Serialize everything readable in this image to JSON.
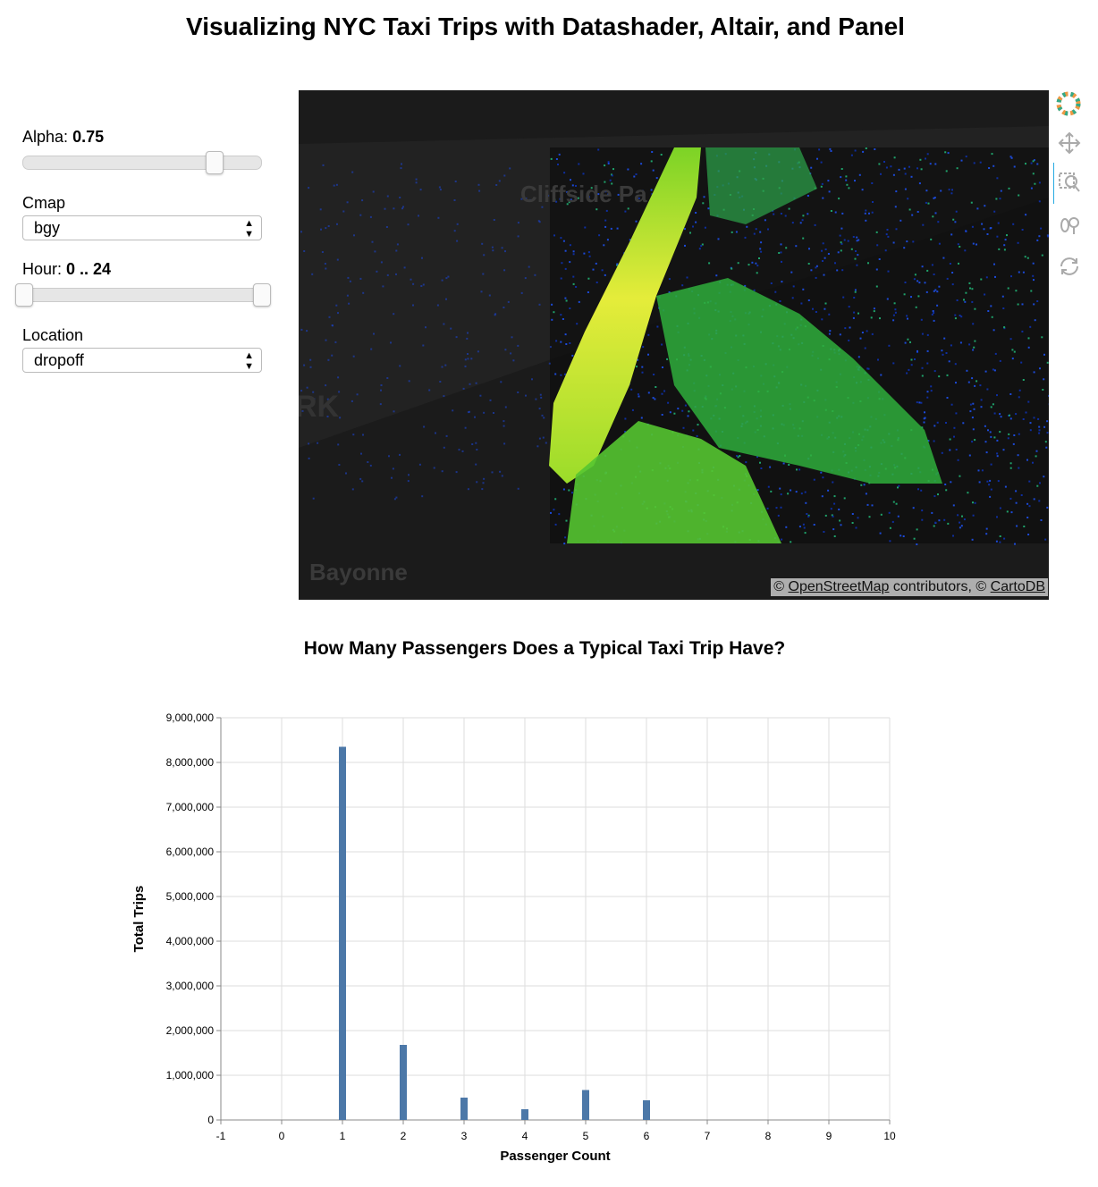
{
  "header": {
    "title": "Visualizing NYC Taxi Trips with Datashader, Altair, and Panel"
  },
  "widgets": {
    "alpha": {
      "label": "Alpha:",
      "value": 0.75
    },
    "cmap": {
      "label": "Cmap",
      "value": "bgy"
    },
    "hour": {
      "label": "Hour:",
      "value": "0 .. 24"
    },
    "location": {
      "label": "Location",
      "value": "dropoff"
    }
  },
  "map": {
    "labels": [
      "Cliffside Pa",
      "RK",
      "Bayonne"
    ],
    "attribution": [
      "©",
      "OpenStreetMap",
      "contributors, ©",
      "CartoDB"
    ]
  },
  "chart_data": {
    "type": "bar",
    "title": "How Many Passengers Does a Typical Taxi Trip Have?",
    "x_label": "Passenger Count",
    "y_label": "Total Trips",
    "x": [
      1,
      2,
      3,
      4,
      5,
      6
    ],
    "values": [
      8350000,
      1680000,
      500000,
      240000,
      670000,
      440000
    ],
    "color": "#4c78a8",
    "xlim": [
      -1,
      10
    ],
    "xticks": [
      -1,
      0,
      1,
      2,
      3,
      4,
      5,
      6,
      7,
      8,
      9,
      10
    ],
    "ylim": [
      0,
      9000000
    ],
    "yticks": [
      0,
      {
        "value": 1000000,
        "label": "1,000,000"
      },
      {
        "value": 2000000,
        "label": "2,000,000"
      },
      {
        "value": 3000000,
        "label": "3,000,000"
      },
      {
        "value": 4000000,
        "label": "4,000,000"
      },
      {
        "value": 5000000,
        "label": "5,000,000"
      },
      {
        "value": 6000000,
        "label": "6,000,000"
      },
      {
        "value": 7000000,
        "label": "7,000,000"
      },
      {
        "value": 8000000,
        "label": "8,000,000"
      },
      {
        "value": 9000000,
        "label": "9,000,000"
      }
    ],
    "grid": true
  }
}
